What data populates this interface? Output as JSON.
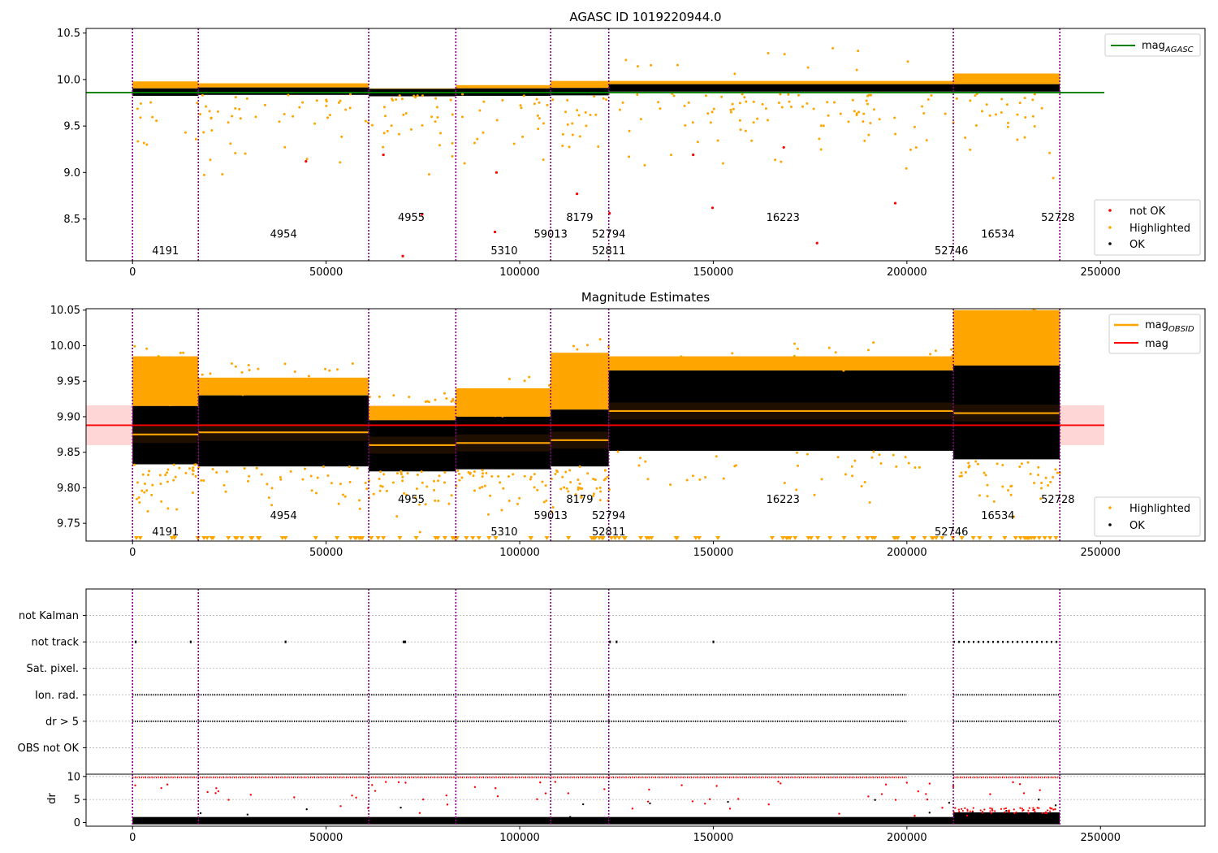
{
  "chart_data": [
    {
      "type": "scatter",
      "title": "AGASC ID 1019220944.0",
      "xlim": [
        -12000,
        277000
      ],
      "ylim": [
        8.05,
        10.55
      ],
      "xticks": [
        0,
        50000,
        100000,
        150000,
        200000,
        250000
      ],
      "yticks": [
        8.5,
        9.0,
        9.5,
        10.0,
        10.5
      ],
      "tick_labels_y": [
        "8.5",
        "9.0",
        "9.5",
        "10.0",
        "10.5"
      ],
      "mag_agasc": 9.86,
      "agasc_line_x": [
        -12000,
        251000
      ],
      "legend_top": [
        {
          "name": "mag",
          "sub": "AGASC",
          "color": "#008000"
        }
      ],
      "legend_bottom": [
        {
          "name": "not OK",
          "color": "#ff0000"
        },
        {
          "name": "Highlighted",
          "color": "#ffa500"
        },
        {
          "name": "OK",
          "color": "#000000"
        }
      ],
      "obsid_labels": [
        {
          "text": "4191",
          "x": 8500,
          "y": 8.12
        },
        {
          "text": "4954",
          "x": 39000,
          "y": 8.3
        },
        {
          "text": "4955",
          "x": 72000,
          "y": 8.48
        },
        {
          "text": "5310",
          "x": 96000,
          "y": 8.12
        },
        {
          "text": "59013",
          "x": 108000,
          "y": 8.3
        },
        {
          "text": "8179",
          "x": 115500,
          "y": 8.48
        },
        {
          "text": "52794",
          "x": 123000,
          "y": 8.3
        },
        {
          "text": "52811",
          "x": 123000,
          "y": 8.12
        },
        {
          "text": "16223",
          "x": 168000,
          "y": 8.48
        },
        {
          "text": "52746",
          "x": 211500,
          "y": 8.12
        },
        {
          "text": "16534",
          "x": 223500,
          "y": 8.3
        },
        {
          "text": "52728",
          "x": 239000,
          "y": 8.48
        }
      ],
      "outliers_not_ok": [
        [
          44800,
          9.12
        ],
        [
          64800,
          9.19
        ],
        [
          74800,
          8.55
        ],
        [
          69800,
          8.1
        ],
        [
          94000,
          9.0
        ],
        [
          93600,
          8.36
        ],
        [
          114800,
          8.77
        ],
        [
          123200,
          8.56
        ],
        [
          144800,
          9.19
        ],
        [
          149800,
          8.62
        ],
        [
          168200,
          9.27
        ],
        [
          176800,
          8.24
        ],
        [
          197000,
          8.67
        ]
      ]
    },
    {
      "type": "scatter",
      "title": "Magnitude Estimates",
      "xlim": [
        -12000,
        277000
      ],
      "ylim": [
        9.725,
        10.052
      ],
      "xticks": [
        0,
        50000,
        100000,
        150000,
        200000,
        250000
      ],
      "yticks": [
        9.75,
        9.8,
        9.85,
        9.9,
        9.95,
        10.0,
        10.05
      ],
      "tick_labels_y": [
        "9.75",
        "9.80",
        "9.85",
        "9.90",
        "9.95",
        "10.00",
        "10.05"
      ],
      "mag": 9.888,
      "mag_band": [
        9.86,
        9.916
      ],
      "mag_line_x": [
        -12000,
        251000
      ],
      "legend_top": [
        {
          "name": "mag",
          "sub": "OBSID",
          "color": "#ffa500"
        },
        {
          "name": "mag",
          "sub": "",
          "color": "#ff0000"
        }
      ],
      "legend_bottom": [
        {
          "name": "Highlighted",
          "color": "#ffa500"
        },
        {
          "name": "OK",
          "color": "#000000"
        }
      ],
      "obsid_labels": [
        {
          "text": "4191",
          "x": 8500,
          "y": 9.733
        },
        {
          "text": "4954",
          "x": 39000,
          "y": 9.756
        },
        {
          "text": "4955",
          "x": 72000,
          "y": 9.779
        },
        {
          "text": "5310",
          "x": 96000,
          "y": 9.733
        },
        {
          "text": "59013",
          "x": 108000,
          "y": 9.756
        },
        {
          "text": "8179",
          "x": 115500,
          "y": 9.779
        },
        {
          "text": "52794",
          "x": 123000,
          "y": 9.756
        },
        {
          "text": "52811",
          "x": 123000,
          "y": 9.733
        },
        {
          "text": "16223",
          "x": 168000,
          "y": 9.779
        },
        {
          "text": "52746",
          "x": 211500,
          "y": 9.733
        },
        {
          "text": "16534",
          "x": 223500,
          "y": 9.756
        },
        {
          "text": "52728",
          "x": 239000,
          "y": 9.779
        }
      ],
      "obsid_segments": [
        {
          "x0": 0,
          "x1": 17000,
          "mag_obsid": 9.875,
          "ok_lo": 9.833,
          "ok_hi": 9.915,
          "hl_hi": 9.985
        },
        {
          "x0": 17000,
          "x1": 61000,
          "mag_obsid": 9.878,
          "ok_lo": 9.83,
          "ok_hi": 9.93,
          "hl_hi": 9.955
        },
        {
          "x0": 61000,
          "x1": 83500,
          "mag_obsid": 9.86,
          "ok_lo": 9.823,
          "ok_hi": 9.895,
          "hl_hi": 9.915
        },
        {
          "x0": 83500,
          "x1": 108000,
          "mag_obsid": 9.863,
          "ok_lo": 9.826,
          "ok_hi": 9.9,
          "hl_hi": 9.94
        },
        {
          "x0": 108000,
          "x1": 123000,
          "mag_obsid": 9.867,
          "ok_lo": 9.83,
          "ok_hi": 9.91,
          "hl_hi": 9.99
        },
        {
          "x0": 123000,
          "x1": 212000,
          "mag_obsid": 9.908,
          "ok_lo": 9.852,
          "ok_hi": 9.965,
          "hl_hi": 9.985
        },
        {
          "x0": 212000,
          "x1": 239500,
          "mag_obsid": 9.905,
          "ok_lo": 9.84,
          "ok_hi": 9.972,
          "hl_hi": 10.05
        }
      ]
    },
    {
      "type": "scatter",
      "title": "",
      "xlim": [
        -12000,
        277000
      ],
      "xticks": [
        0,
        50000,
        100000,
        150000,
        200000,
        250000
      ],
      "categories": [
        "not Kalman",
        "not track",
        "Sat. pixel.",
        "Ion. rad.",
        "dr > 5",
        "OBS not OK"
      ],
      "flag_ranges": {
        "ion_rad": [
          [
            0,
            123000
          ],
          [
            123000,
            200000
          ],
          [
            212000,
            239500
          ]
        ],
        "dr_gt_5": [
          [
            0,
            123000
          ],
          [
            123000,
            200000
          ],
          [
            212000,
            239500
          ]
        ]
      },
      "not_track_x": [
        800,
        15000,
        39500,
        70000,
        70400,
        123300,
        125000,
        150000
      ],
      "not_track_dense": [
        212000,
        239500
      ]
    },
    {
      "type": "scatter",
      "title": "",
      "ylabel": "dr",
      "xlim": [
        -12000,
        277000
      ],
      "ylim": [
        -0.8,
        10.5
      ],
      "xticks": [
        0,
        50000,
        100000,
        150000,
        200000,
        250000
      ],
      "yticks": [
        0,
        5,
        10
      ],
      "tick_labels_y": [
        "0",
        "5",
        "10"
      ],
      "x_tick_labels": [
        "0",
        "50000",
        "100000",
        "150000",
        "200000",
        "250000"
      ]
    }
  ],
  "obsid_boundaries": [
    0,
    17000,
    61000,
    83500,
    108000,
    123000,
    212000,
    239500
  ],
  "colors": {
    "ok": "#000000",
    "highlighted": "#ffa500",
    "not_ok": "#ff0000",
    "agasc": "#008000",
    "boundary": "#800080",
    "mag_band": "#ffcccc"
  }
}
